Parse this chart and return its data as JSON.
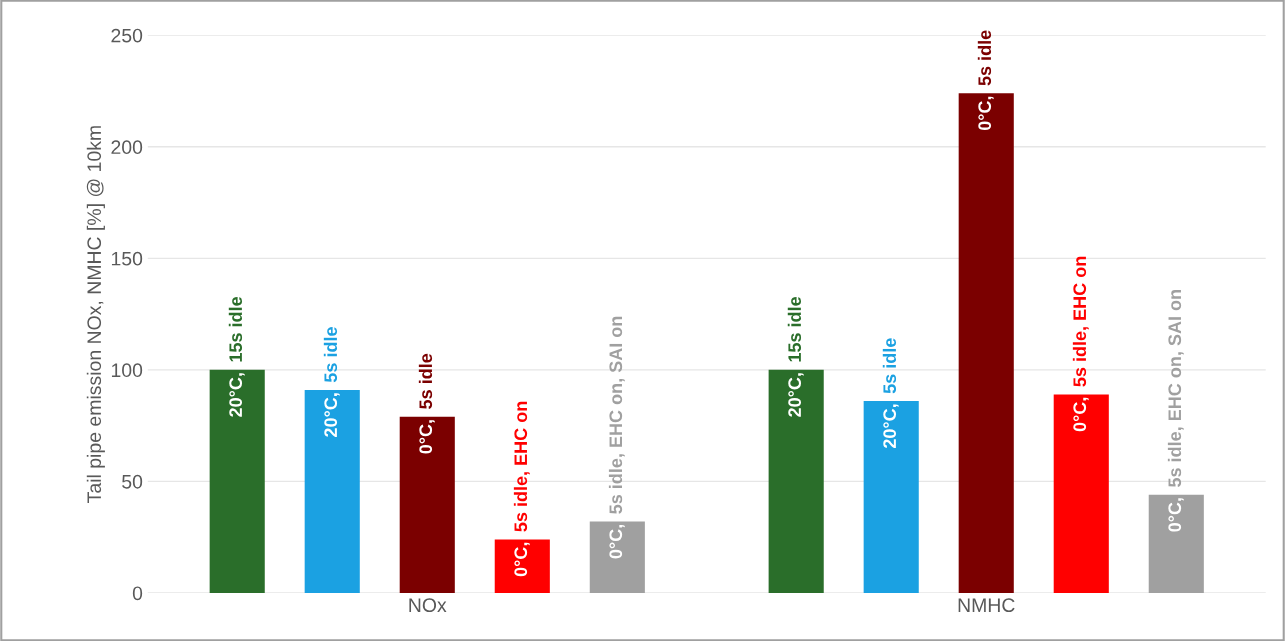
{
  "chart_data": {
    "type": "bar",
    "ylabel": "Tail pipe emission NOx, NMHC [%] @ 10km",
    "categories": [
      "NOx",
      "NMHC"
    ],
    "series": [
      {
        "name": "20°C, 15s idle",
        "color": "#2a6e2a",
        "values": [
          100,
          100
        ]
      },
      {
        "name": "20°C, 5s idle",
        "color": "#1ba1e2",
        "values": [
          91,
          86
        ]
      },
      {
        "name": "0°C, 5s idle",
        "color": "#7b0000",
        "values": [
          79,
          224
        ]
      },
      {
        "name": "0°C, 5s idle, EHC on",
        "color": "#ff0000",
        "values": [
          24,
          89
        ]
      },
      {
        "name": "0°C, 5s idle, EHC on, SAI on",
        "color": "#a0a0a0",
        "values": [
          32,
          44
        ]
      }
    ],
    "ylim": [
      0,
      250
    ],
    "yticks": [
      0,
      50,
      100,
      150,
      200,
      250
    ],
    "grid": "y",
    "legend": false
  }
}
